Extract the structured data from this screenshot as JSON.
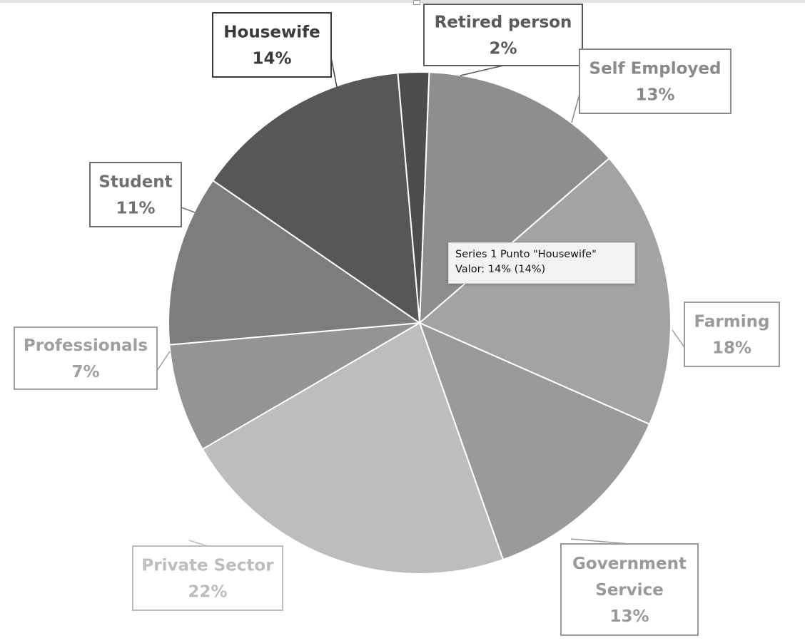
{
  "chart_data": {
    "type": "pie",
    "series_name": "Series 1",
    "slices": [
      {
        "label": "Retired person",
        "value": 2,
        "display": "2%",
        "color": "#4d4d4d",
        "label_color": "#5a5a5a"
      },
      {
        "label": "Self Employed",
        "value": 13,
        "display": "13%",
        "color": "#8e8e8e",
        "label_color": "#8a8a8a"
      },
      {
        "label": "Farming",
        "value": 18,
        "display": "18%",
        "color": "#a3a3a3",
        "label_color": "#9a9a9a"
      },
      {
        "label": "Government Service",
        "label_lines": [
          "Government",
          "Service"
        ],
        "value": 13,
        "display": "13%",
        "color": "#9a9a9a",
        "label_color": "#9a9a9a"
      },
      {
        "label": "Private Sector",
        "value": 22,
        "display": "22%",
        "color": "#bdbdbd",
        "label_color": "#bdbdbd"
      },
      {
        "label": "Professionals",
        "value": 7,
        "display": "7%",
        "color": "#949494",
        "label_color": "#a0a0a0"
      },
      {
        "label": "Student",
        "value": 11,
        "display": "11%",
        "color": "#7d7d7d",
        "label_color": "#707070"
      },
      {
        "label": "Housewife",
        "value": 14,
        "display": "14%",
        "color": "#575757",
        "label_color": "#3a3a3a"
      }
    ]
  },
  "tooltip": {
    "line1": "Series 1 Punto \"Housewife\"",
    "line2": "Valor: 14% (14%)"
  }
}
